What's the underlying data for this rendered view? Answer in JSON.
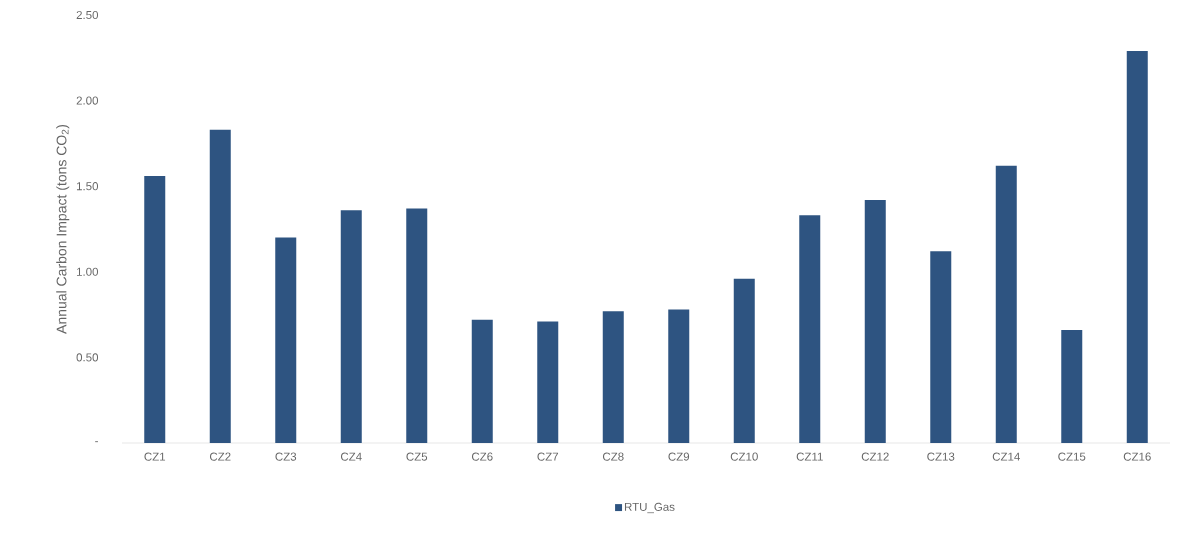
{
  "chart_data": {
    "type": "bar",
    "ylabel": "Annual Carbon Impact (tons CO$_{2}$)",
    "categories": [
      "CZ1",
      "CZ2",
      "CZ3",
      "CZ4",
      "CZ5",
      "CZ6",
      "CZ7",
      "CZ8",
      "CZ9",
      "CZ10",
      "CZ11",
      "CZ12",
      "CZ13",
      "CZ14",
      "CZ15",
      "CZ16"
    ],
    "series": [
      {
        "name": "RTU_Gas",
        "color": "#2e5481",
        "values": [
          1.56,
          1.83,
          1.2,
          1.36,
          1.37,
          0.72,
          0.71,
          0.77,
          0.78,
          0.96,
          1.33,
          1.42,
          1.12,
          1.62,
          0.66,
          2.29
        ]
      }
    ],
    "ylim": [
      0,
      2.5
    ],
    "yticks": [
      {
        "value": 0,
        "label": "-"
      },
      {
        "value": 0.5,
        "label": "0.50"
      },
      {
        "value": 1,
        "label": "1.00"
      },
      {
        "value": 1.5,
        "label": "1.50"
      },
      {
        "value": 2,
        "label": "2.00"
      },
      {
        "value": 2.5,
        "label": "2.50"
      }
    ],
    "legend": "bottom"
  }
}
